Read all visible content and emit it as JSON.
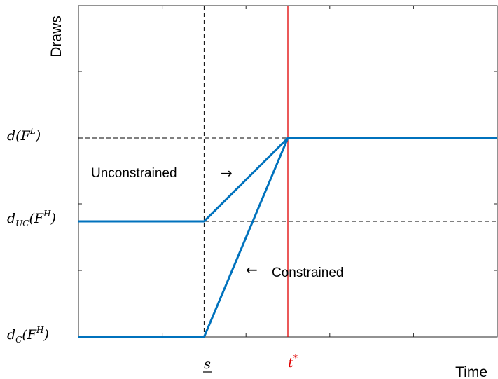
{
  "chart_data": {
    "type": "line",
    "title": "",
    "xlabel": "Time",
    "ylabel": "Draws",
    "x_ticks": [
      {
        "x": 3,
        "label": "s"
      },
      {
        "x": 5,
        "label": "t*"
      }
    ],
    "y_ticks": [
      {
        "y": 5,
        "label": "d(F^L)"
      },
      {
        "y": 3,
        "label": "d_UC(F^H)"
      },
      {
        "y": 0,
        "label": "d_C(F^H)"
      }
    ],
    "tick_text": {
      "dFL_main": "d(F",
      "dFL_sup": "L",
      "dFL_close": ")",
      "dUC_main": "d",
      "dUC_sub": "UC",
      "dUC_mid": "(F",
      "dUC_sup": "H",
      "dUC_close": ")",
      "dC_main": "d",
      "dC_sub": "C",
      "dC_mid": "(F",
      "dC_sup": "H",
      "dC_close": ")",
      "s": "s",
      "t_main": "t",
      "t_sup": "*"
    },
    "xlim": [
      0,
      10
    ],
    "ylim": [
      0,
      8
    ],
    "series": [
      {
        "key": "unconstrained",
        "color": "#0072BD",
        "points": [
          [
            0,
            3
          ],
          [
            3,
            3
          ],
          [
            5,
            5
          ],
          [
            10,
            5
          ]
        ]
      },
      {
        "key": "constrained",
        "color": "#0072BD",
        "points": [
          [
            0,
            0
          ],
          [
            3,
            0
          ],
          [
            5,
            5
          ],
          [
            10,
            5
          ]
        ]
      }
    ],
    "reference_lines": [
      {
        "orientation": "vertical",
        "value": 3,
        "style": "dashed",
        "color": "#000000"
      },
      {
        "orientation": "vertical",
        "value": 5,
        "style": "solid",
        "color": "#e00000"
      },
      {
        "orientation": "horizontal",
        "value": 5,
        "style": "dashed",
        "color": "#000000"
      },
      {
        "orientation": "horizontal",
        "value": 3,
        "style": "dashed",
        "color": "#000000"
      }
    ],
    "minor_ticks_x": [
      2,
      4,
      6,
      8
    ],
    "minor_ticks_y": [
      2,
      4,
      6
    ],
    "annotations": [
      {
        "text": "Unconstrained",
        "arrow": "→"
      },
      {
        "text": "Constrained",
        "arrow": "←"
      }
    ],
    "grid": false
  }
}
